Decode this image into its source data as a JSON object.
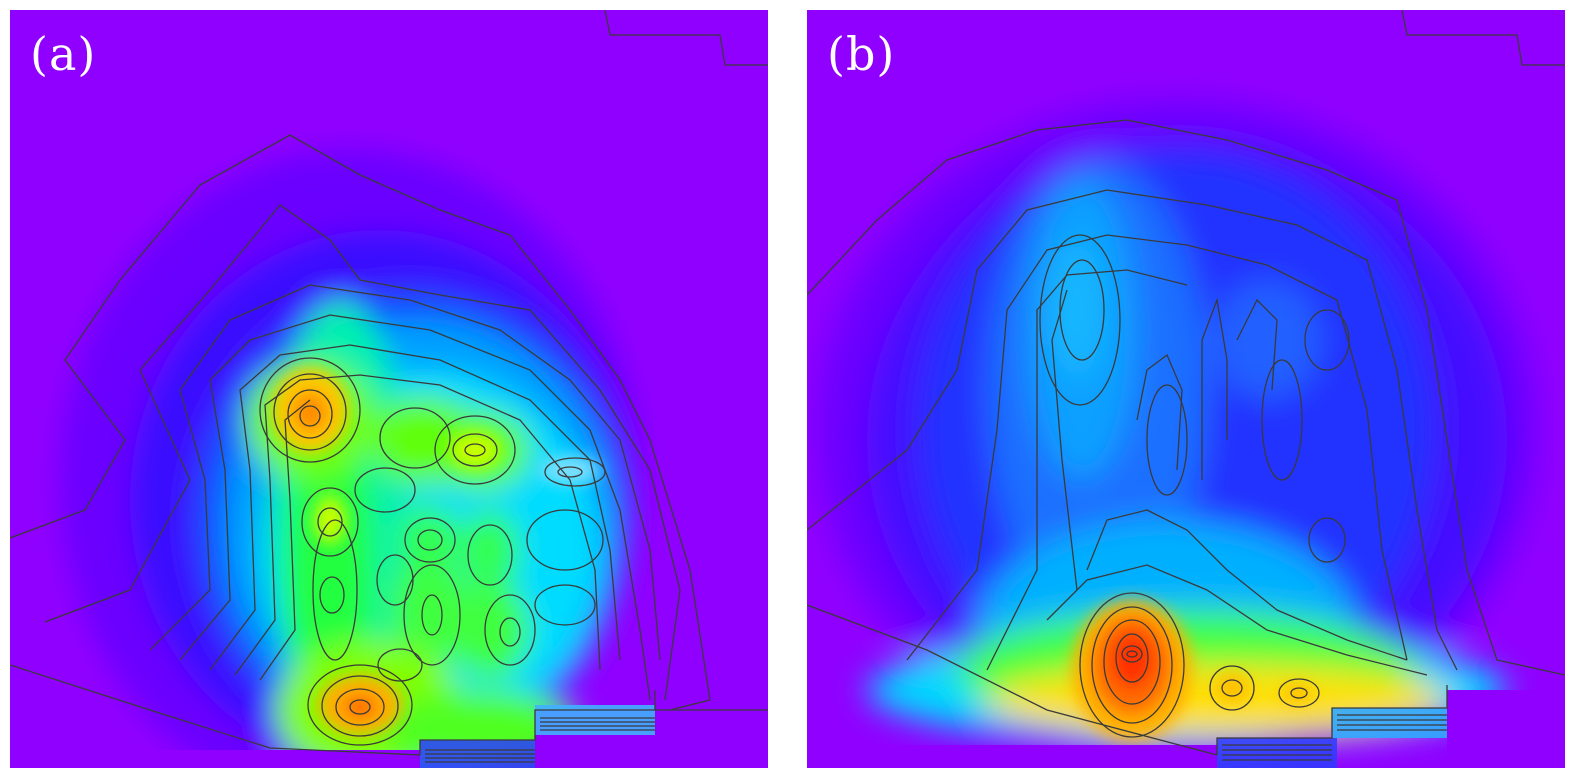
{
  "panels": [
    {
      "id": "a",
      "label": "(a)"
    },
    {
      "id": "b",
      "label": "(b)"
    }
  ],
  "colors": {
    "background": "#9000ff",
    "colormap": [
      "#9000ff",
      "#5a00ff",
      "#2f1cff",
      "#0a5cff",
      "#00a8ff",
      "#00e6ff",
      "#00ff9c",
      "#2cff00",
      "#a8ff00",
      "#ffe600",
      "#ff8c00",
      "#ff2a00"
    ],
    "contour_line": "#3a3a3a"
  }
}
